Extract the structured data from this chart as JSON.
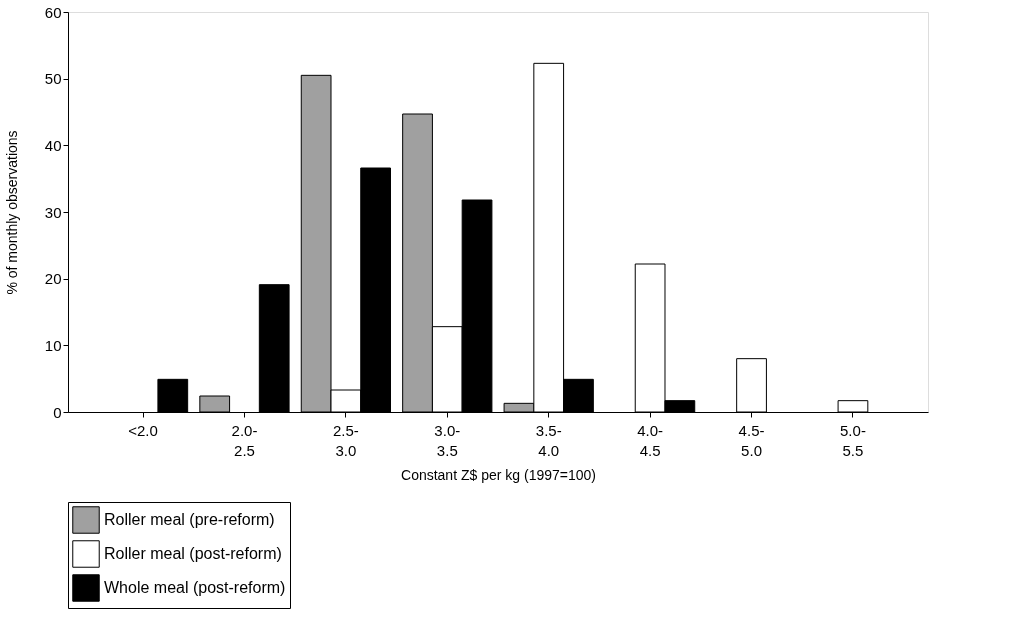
{
  "chart_data": {
    "type": "bar",
    "xlabel": "Constant Z$ per kg (1997=100)",
    "ylabel": "% of monthly observations",
    "categories": [
      "<2.0",
      "2.0-2.5",
      "2.5-3.0",
      "3.0-3.5",
      "3.5-4.0",
      "4.0-4.5",
      "4.5-5.0",
      "5.0-5.5"
    ],
    "series": [
      {
        "name": "Roller meal (pre-reform)",
        "color": "#a0a0a0",
        "values": [
          0,
          2.4,
          50.5,
          44.7,
          1.3,
          0,
          0,
          0
        ]
      },
      {
        "name": "Roller meal (post-reform)",
        "color": "#ffffff",
        "values": [
          0,
          0,
          3.3,
          12.8,
          52.3,
          22.2,
          8.0,
          1.7
        ]
      },
      {
        "name": "Whole meal (post-reform)",
        "color": "#000000",
        "values": [
          4.9,
          19.1,
          36.6,
          31.8,
          4.9,
          1.7,
          0,
          0
        ]
      }
    ],
    "ylim": [
      0,
      60
    ],
    "yticks": [
      0,
      10,
      20,
      30,
      40,
      50,
      60
    ],
    "grid": false,
    "legend": "bottom"
  }
}
